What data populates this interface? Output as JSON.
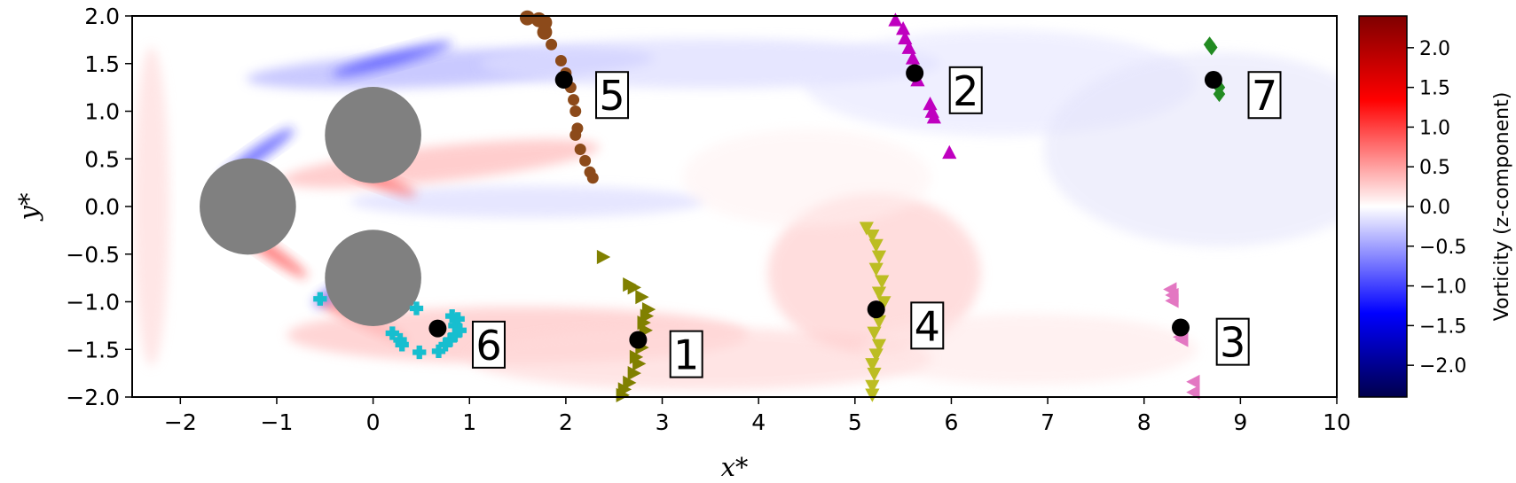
{
  "chart_data": {
    "type": "scatter",
    "title": "",
    "xlabel": "x*",
    "ylabel": "y*",
    "xlim": [
      -2.5,
      10
    ],
    "ylim": [
      -2.0,
      2.0
    ],
    "xticks": [
      -2,
      -1,
      0,
      1,
      2,
      3,
      4,
      5,
      6,
      7,
      8,
      9,
      10
    ],
    "xtick_labels": [
      "−2",
      "−1",
      "0",
      "1",
      "2",
      "3",
      "4",
      "5",
      "6",
      "7",
      "8",
      "9",
      "10"
    ],
    "yticks": [
      2.0,
      1.5,
      1.0,
      0.5,
      0.0,
      -0.5,
      -1.0,
      -1.5,
      -2.0
    ],
    "ytick_labels": [
      "2.0",
      "1.5",
      "1.0",
      "0.5",
      "0.0",
      "−0.5",
      "−1.0",
      "−1.5",
      "−2.0"
    ],
    "background": "vorticity field (z-component) contour, red positive / blue negative",
    "obstacles": [
      {
        "cx": -1.3,
        "cy": 0.0,
        "r": 0.5,
        "color": "#808080"
      },
      {
        "cx": 0.0,
        "cy": 0.75,
        "r": 0.5,
        "color": "#808080"
      },
      {
        "cx": 0.0,
        "cy": -0.75,
        "r": 0.5,
        "color": "#808080"
      }
    ],
    "colorbar": {
      "label": "Vorticity (z-component)",
      "range": [
        -2.4,
        2.4
      ],
      "ticks": [
        2.0,
        1.5,
        1.0,
        0.5,
        0.0,
        -0.5,
        -1.0,
        -1.5,
        -2.0
      ],
      "tick_labels": [
        "2.0",
        "1.5",
        "1.0",
        "0.5",
        "0.0",
        "−0.5",
        "−1.0",
        "−1.5",
        "−2.0"
      ],
      "colormap": "seismic"
    },
    "groups": [
      {
        "label": "1",
        "marker": "triangle-right",
        "color": "#808000",
        "center": [
          2.75,
          -1.4
        ],
        "label_pos": [
          3.25,
          -1.55
        ],
        "points": [
          [
            2.38,
            -0.53
          ],
          [
            2.65,
            -0.82
          ],
          [
            2.7,
            -0.85
          ],
          [
            2.78,
            -0.95
          ],
          [
            2.85,
            -1.08
          ],
          [
            2.83,
            -1.15
          ],
          [
            2.8,
            -1.22
          ],
          [
            2.82,
            -1.3
          ],
          [
            2.78,
            -1.48
          ],
          [
            2.72,
            -1.58
          ],
          [
            2.75,
            -1.65
          ],
          [
            2.7,
            -1.75
          ],
          [
            2.65,
            -1.85
          ],
          [
            2.6,
            -1.92
          ],
          [
            2.58,
            -1.98
          ]
        ]
      },
      {
        "label": "2",
        "marker": "triangle-up",
        "color": "#bf00bf",
        "center": [
          5.62,
          1.4
        ],
        "label_pos": [
          6.15,
          1.22
        ],
        "points": [
          [
            5.42,
            1.95
          ],
          [
            5.5,
            1.86
          ],
          [
            5.52,
            1.76
          ],
          [
            5.56,
            1.66
          ],
          [
            5.6,
            1.55
          ],
          [
            5.62,
            1.46
          ],
          [
            5.65,
            1.32
          ],
          [
            5.78,
            1.07
          ],
          [
            5.8,
            0.99
          ],
          [
            5.82,
            0.93
          ],
          [
            5.98,
            0.56
          ]
        ]
      },
      {
        "label": "3",
        "marker": "triangle-left",
        "color": "#e377c2",
        "center": [
          8.38,
          -1.27
        ],
        "label_pos": [
          8.92,
          -1.42
        ],
        "points": [
          [
            8.28,
            -0.87
          ],
          [
            8.3,
            -0.93
          ],
          [
            8.3,
            -0.99
          ],
          [
            8.38,
            -1.37
          ],
          [
            8.4,
            -1.4
          ],
          [
            8.52,
            -1.84
          ],
          [
            8.52,
            -1.95
          ]
        ]
      },
      {
        "label": "4",
        "marker": "triangle-down",
        "color": "#bcbd22",
        "center": [
          5.22,
          -1.08
        ],
        "label_pos": [
          5.75,
          -1.25
        ],
        "points": [
          [
            5.12,
            -0.22
          ],
          [
            5.18,
            -0.3
          ],
          [
            5.22,
            -0.4
          ],
          [
            5.25,
            -0.52
          ],
          [
            5.22,
            -0.65
          ],
          [
            5.28,
            -0.78
          ],
          [
            5.25,
            -0.9
          ],
          [
            5.3,
            -1.0
          ],
          [
            5.25,
            -1.2
          ],
          [
            5.2,
            -1.32
          ],
          [
            5.25,
            -1.45
          ],
          [
            5.22,
            -1.55
          ],
          [
            5.18,
            -1.65
          ],
          [
            5.2,
            -1.75
          ],
          [
            5.18,
            -1.88
          ],
          [
            5.18,
            -1.97
          ]
        ]
      },
      {
        "label": "5",
        "marker": "circle",
        "color": "#8c4a1a",
        "center": [
          1.98,
          1.33
        ],
        "label_pos": [
          2.48,
          1.17
        ],
        "points": [
          [
            1.6,
            1.98
          ],
          [
            1.72,
            1.96
          ],
          [
            1.78,
            1.93
          ],
          [
            1.78,
            1.83
          ],
          [
            1.85,
            1.7
          ],
          [
            1.95,
            1.53
          ],
          [
            2.0,
            1.4
          ],
          [
            2.05,
            1.25
          ],
          [
            2.08,
            1.12
          ],
          [
            2.1,
            1.0
          ],
          [
            2.12,
            0.82
          ],
          [
            2.1,
            0.75
          ],
          [
            2.15,
            0.6
          ],
          [
            2.2,
            0.48
          ],
          [
            2.25,
            0.36
          ],
          [
            2.28,
            0.3
          ]
        ]
      },
      {
        "label": "6",
        "marker": "plus-filled",
        "color": "#17becf",
        "center": [
          0.67,
          -1.28
        ],
        "label_pos": [
          1.2,
          -1.45
        ],
        "points": [
          [
            -0.55,
            -0.97
          ],
          [
            0.2,
            -1.33
          ],
          [
            0.28,
            -1.4
          ],
          [
            0.3,
            -1.45
          ],
          [
            0.48,
            -1.53
          ],
          [
            0.45,
            -1.07
          ],
          [
            0.68,
            -1.52
          ],
          [
            0.75,
            -1.45
          ],
          [
            0.8,
            -1.4
          ],
          [
            0.85,
            -1.35
          ],
          [
            0.85,
            -1.25
          ],
          [
            0.88,
            -1.18
          ],
          [
            0.82,
            -1.15
          ],
          [
            0.9,
            -1.3
          ]
        ]
      },
      {
        "label": "7",
        "marker": "diamond",
        "color": "#228b22",
        "center": [
          8.72,
          1.33
        ],
        "label_pos": [
          9.25,
          1.17
        ],
        "points": [
          [
            8.68,
            1.7
          ],
          [
            8.7,
            1.67
          ],
          [
            8.75,
            1.3
          ],
          [
            8.78,
            1.25
          ],
          [
            8.78,
            1.18
          ]
        ]
      }
    ]
  }
}
